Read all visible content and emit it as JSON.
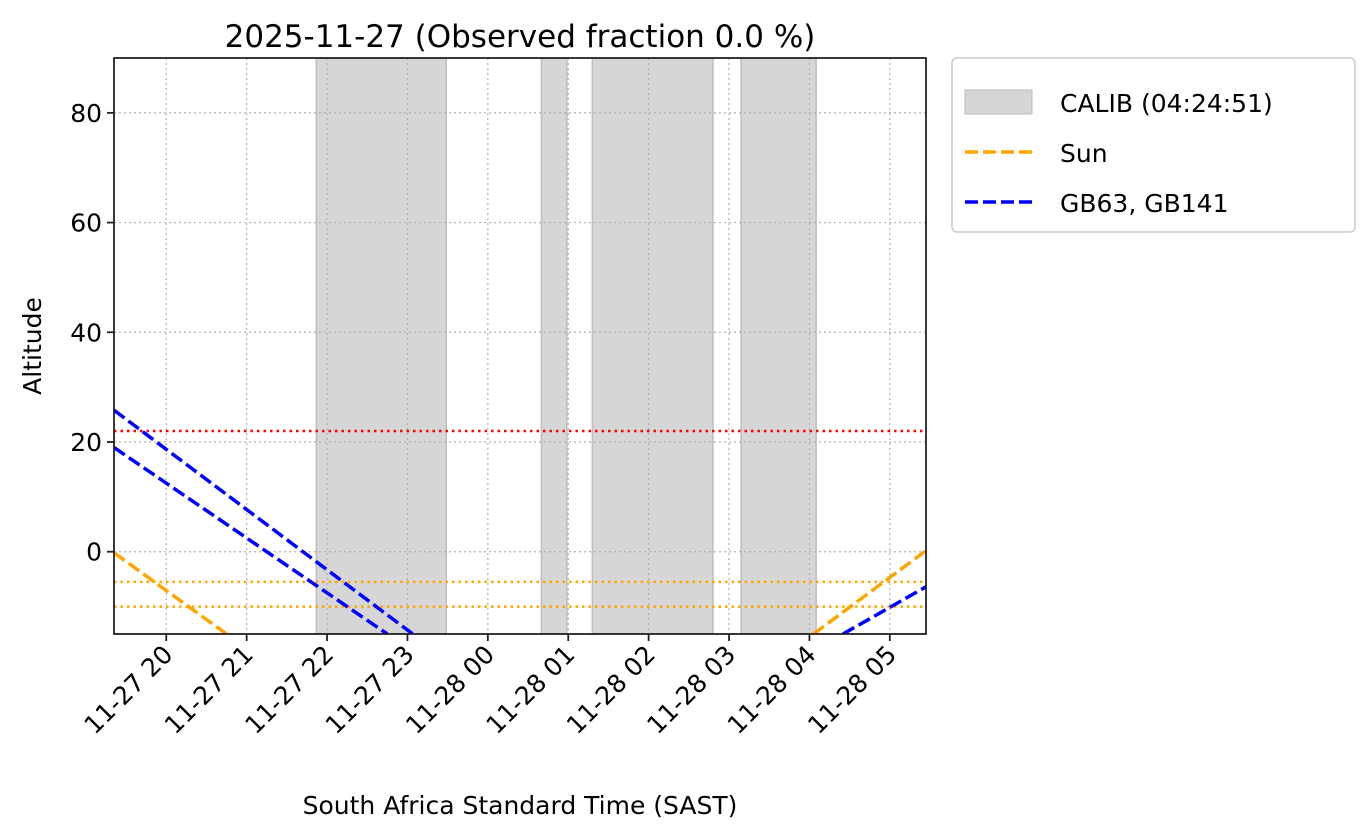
{
  "chart_data": {
    "type": "line",
    "title": "2025-11-27 (Observed fraction 0.0 %)",
    "xlabel": "South Africa Standard Time (SAST)",
    "ylabel": "Altitude",
    "xlim": [
      "2025-11-27 19:21",
      "2025-11-28 05:27"
    ],
    "ylim": [
      -15,
      90
    ],
    "yticks": [
      0,
      20,
      40,
      60,
      80
    ],
    "xticks": [
      {
        "t": "2025-11-27 20:00",
        "label": "11-27 20"
      },
      {
        "t": "2025-11-27 21:00",
        "label": "11-27 21"
      },
      {
        "t": "2025-11-27 22:00",
        "label": "11-27 22"
      },
      {
        "t": "2025-11-27 23:00",
        "label": "11-27 23"
      },
      {
        "t": "2025-11-28 00:00",
        "label": "11-28 00"
      },
      {
        "t": "2025-11-28 01:00",
        "label": "11-28 01"
      },
      {
        "t": "2025-11-28 02:00",
        "label": "11-28 02"
      },
      {
        "t": "2025-11-28 03:00",
        "label": "11-28 03"
      },
      {
        "t": "2025-11-28 04:00",
        "label": "11-28 04"
      },
      {
        "t": "2025-11-28 05:00",
        "label": "11-28 05"
      }
    ],
    "grid": true,
    "legend_placement": "outside-top-right",
    "shaded_regions": {
      "name": "CALIB (04:24:51)",
      "color": "#d6d6d6",
      "spans": [
        [
          "2025-11-27 21:52",
          "2025-11-27 23:29"
        ],
        [
          "2025-11-28 00:40",
          "2025-11-28 00:59"
        ],
        [
          "2025-11-28 01:18",
          "2025-11-28 02:48"
        ],
        [
          "2025-11-28 03:09",
          "2025-11-28 04:05"
        ]
      ]
    },
    "hlines": [
      {
        "y": 22,
        "color": "#ff0000"
      },
      {
        "y": -5.5,
        "color": "#ffa500"
      },
      {
        "y": -10,
        "color": "#ffa500"
      }
    ],
    "series": [
      {
        "name": "Sun",
        "color": "#ffa500",
        "segments": [
          [
            [
              "2025-11-27 19:21",
              -0.2
            ],
            [
              "2025-11-27 20:45",
              -15
            ]
          ],
          [
            [
              "2025-11-28 04:03",
              -15
            ],
            [
              "2025-11-28 05:27",
              0.2
            ]
          ]
        ]
      },
      {
        "name": "GB63, GB141",
        "color": "#0000ff",
        "segments": [
          [
            [
              "2025-11-27 19:21",
              25.8
            ],
            [
              "2025-11-27 23:04",
              -15
            ]
          ],
          [
            [
              "2025-11-27 19:21",
              19.0
            ],
            [
              "2025-11-27 22:45",
              -15
            ]
          ],
          [
            [
              "2025-11-28 04:25",
              -15
            ],
            [
              "2025-11-28 05:27",
              -6.4
            ]
          ]
        ]
      }
    ]
  }
}
